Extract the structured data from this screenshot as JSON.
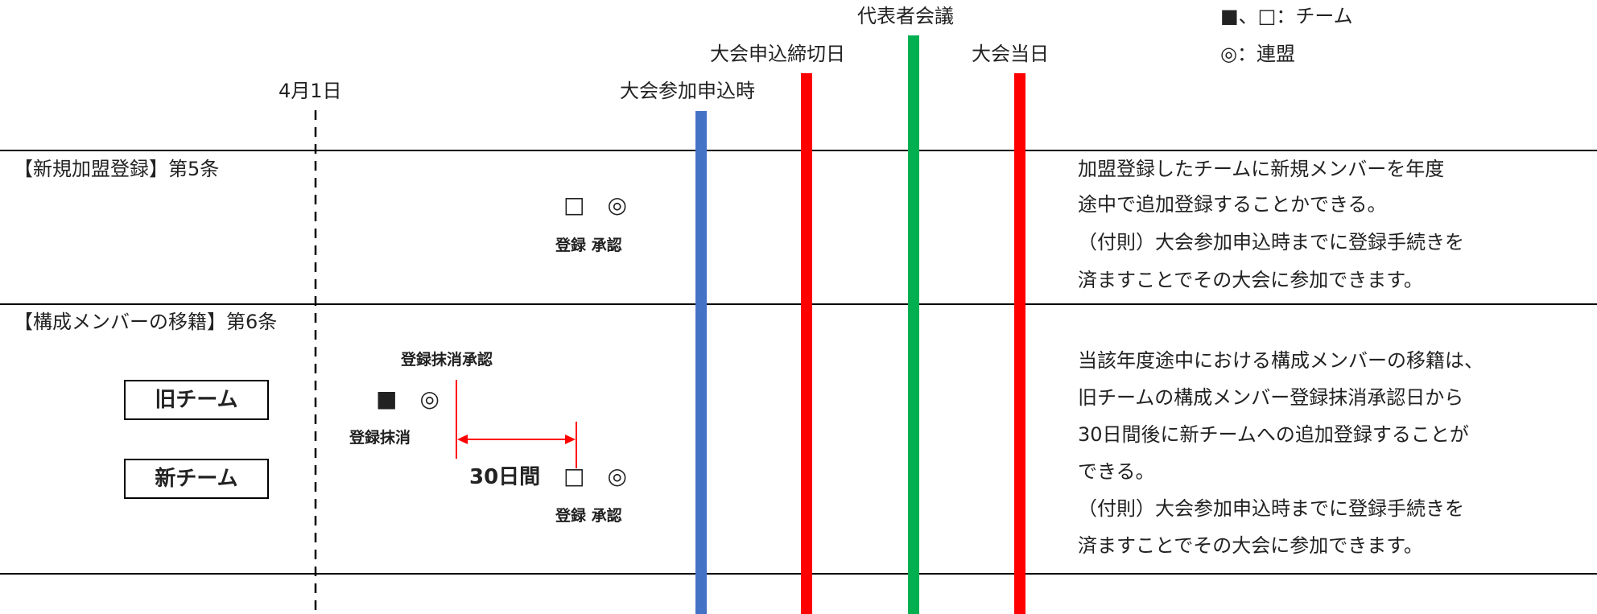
{
  "timeline_labels": {
    "april1": "4月1日",
    "entry_time": "大会参加申込時",
    "deadline": "大会申込締切日",
    "rep_meeting": "代表者会議",
    "event_day": "大会当日"
  },
  "legend": {
    "team": "■、□：チーム",
    "league": "◎：連盟"
  },
  "section1": {
    "title": "【新規加盟登録】第5条",
    "symbols": "□　◎",
    "caption": "登録 承認",
    "desc": [
      "加盟登録したチームに新規メンバーを年度",
      "途中で追加登録することかできる。",
      "（付則）大会参加申込時までに登録手続きを",
      "済ますことでその大会に参加できます。"
    ]
  },
  "section2": {
    "title": "【構成メンバーの移籍】第6条",
    "old_team": "旧チーム",
    "new_team": "新チーム",
    "cancel_approval_label": "登録抹消承認",
    "old_symbols": "■　◎",
    "cancel_label": "登録抹消",
    "days_label": "30日間",
    "new_symbols": "□　◎",
    "caption": "登録 承認",
    "desc": [
      "当該年度途中における構成メンバーの移籍は、",
      "旧チームの構成メンバー登録抹消承認日から",
      "30日間後に新チームへの追加登録することが",
      "できる。",
      "（付則）大会参加申込時までに登録手続きを",
      "済ますことでその大会に参加できます。"
    ]
  },
  "colors": {
    "entry_bar": "#4472C4",
    "deadline_bar": "#FF0000",
    "meeting_bar": "#00B050",
    "event_bar": "#FF0000",
    "arrow": "#FF0000"
  }
}
